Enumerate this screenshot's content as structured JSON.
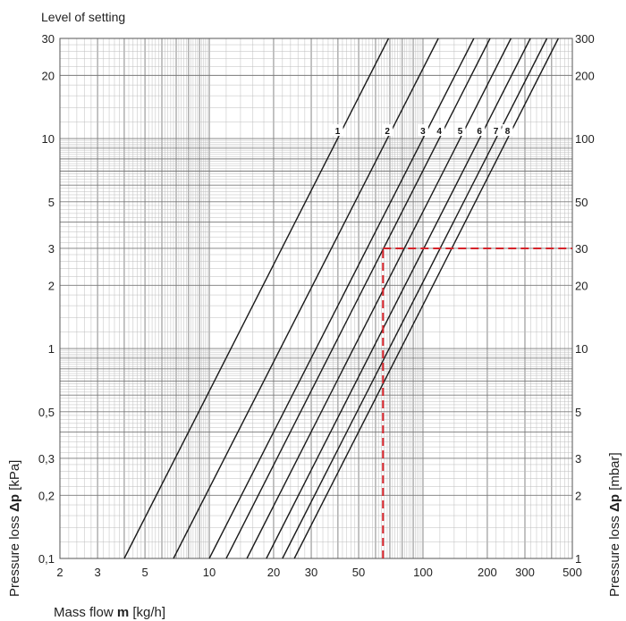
{
  "chart_data": {
    "type": "line",
    "title": "Level of setting",
    "xlabel": {
      "prefix": "Mass flow ",
      "symbol": "m",
      "suffix": " [kg/h]"
    },
    "ylabel_left": {
      "prefix": "Pressure loss ",
      "symbol": "Δp",
      "suffix": " [kPa]"
    },
    "ylabel_right": {
      "prefix": "Pressure loss ",
      "symbol": "Δp",
      "suffix": " [mbar]"
    },
    "x_scale": "log",
    "y_scale": "log",
    "xlim": [
      2,
      500
    ],
    "ylim": [
      0.1,
      30
    ],
    "grid": true,
    "x_ticks": [
      "2",
      "3",
      "5",
      "10",
      "20",
      "30",
      "50",
      "100",
      "200",
      "300",
      "500"
    ],
    "x_tick_values": [
      2,
      3,
      5,
      10,
      20,
      30,
      50,
      100,
      200,
      300,
      500
    ],
    "y_ticks_left": [
      "0,1",
      "0,2",
      "0,3",
      "0,5",
      "1",
      "2",
      "3",
      "5",
      "10",
      "20",
      "30"
    ],
    "y_ticks_right": [
      "1",
      "2",
      "3",
      "5",
      "10",
      "20",
      "30",
      "50",
      "100",
      "200",
      "300"
    ],
    "y_tick_values": [
      0.1,
      0.2,
      0.3,
      0.5,
      1,
      2,
      3,
      5,
      10,
      20,
      30
    ],
    "series": [
      {
        "name": "1",
        "x": [
          4,
          69
        ],
        "y": [
          0.1,
          30
        ]
      },
      {
        "name": "2",
        "x": [
          6.8,
          118
        ],
        "y": [
          0.1,
          30
        ]
      },
      {
        "name": "3",
        "x": [
          10,
          173
        ],
        "y": [
          0.1,
          30
        ]
      },
      {
        "name": "4",
        "x": [
          12,
          206
        ],
        "y": [
          0.1,
          30
        ]
      },
      {
        "name": "5",
        "x": [
          15,
          258
        ],
        "y": [
          0.1,
          30
        ]
      },
      {
        "name": "6",
        "x": [
          18.5,
          318
        ],
        "y": [
          0.1,
          30
        ]
      },
      {
        "name": "7",
        "x": [
          22,
          380
        ],
        "y": [
          0.1,
          30
        ]
      },
      {
        "name": "8",
        "x": [
          25,
          430
        ],
        "y": [
          0.1,
          30
        ]
      }
    ],
    "example_reading": {
      "x": 65,
      "y": 3,
      "color": "#d6232a"
    },
    "colors": {
      "curve": "#1a1a1a",
      "grid_major": "#7a7a7a",
      "grid_minor": "#bdbdbd",
      "example": "#d6232a"
    }
  }
}
